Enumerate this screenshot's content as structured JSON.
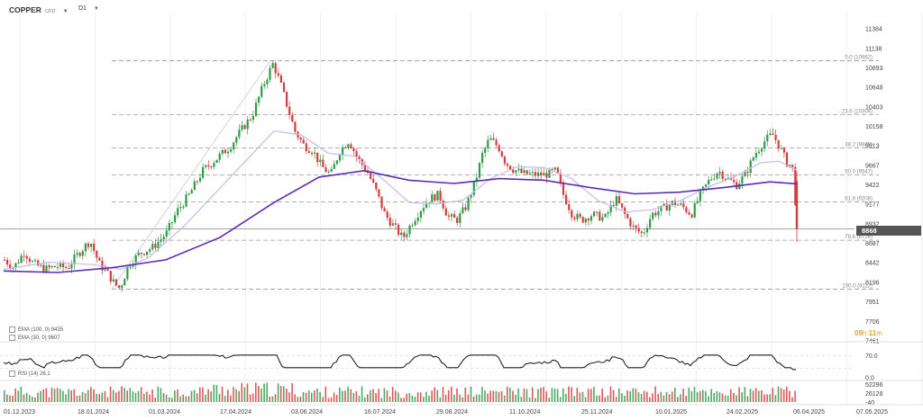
{
  "header": {
    "symbol": "COPPER",
    "symbol_suffix": "CFD",
    "timeframe": "D1"
  },
  "indicators": {
    "ema100_label": "EMA (100, 0) 9435",
    "ema30_label": "EMA (30, 0) 9607",
    "rsi_label": "RSI (14) 26.1"
  },
  "countdown": {
    "hours": "09",
    "h": "h",
    "minutes": "11",
    "m": "m"
  },
  "current_price_label": "8868",
  "colors": {
    "up": "#2e9b47",
    "down": "#d23d3d",
    "ema100": "#5b2bb5",
    "ema30": "#c9b8ef",
    "rsi": "#222222",
    "fib": "#9a9a9a"
  },
  "chart_data": {
    "type": "candlestick",
    "y_ticks": [
      "11384",
      "11138",
      "10893",
      "10648",
      "10403",
      "10158",
      "9913",
      "9667",
      "9422",
      "9177",
      "8932",
      "8687",
      "8442",
      "8196",
      "7951",
      "7706",
      "7461"
    ],
    "y_range": [
      7461,
      11384
    ],
    "x_ticks": [
      "01.12.2023",
      "18.01.2024",
      "01.03.2024",
      "17.04.2024",
      "03.06.2024",
      "16.07.2024",
      "29.08.2024",
      "11.10.2024",
      "25.11.2024",
      "10.01.2025",
      "24.02.2025",
      "06.04.2025",
      "07.05.2025"
    ],
    "current_price": 8868,
    "fibonacci": [
      {
        "label": "0.0 (10982)",
        "value": 10982
      },
      {
        "label": "23.6 (10304)",
        "value": 10304
      },
      {
        "label": "38.2 (9885)",
        "value": 9885
      },
      {
        "label": "50.0 (9547)",
        "value": 9547
      },
      {
        "label": "61.8 (9208)",
        "value": 9208
      },
      {
        "label": "78.6 (8726)",
        "value": 8726
      },
      {
        "label": "100.0 (8112)",
        "value": 8112
      }
    ],
    "close_path": [
      [
        0,
        8480
      ],
      [
        10,
        8380
      ],
      [
        22,
        8580
      ],
      [
        32,
        8430
      ],
      [
        45,
        8360
      ],
      [
        58,
        8400
      ],
      [
        70,
        8380
      ],
      [
        82,
        8560
      ],
      [
        95,
        8720
      ],
      [
        105,
        8430
      ],
      [
        115,
        8300
      ],
      [
        122,
        8180
      ],
      [
        128,
        8120
      ],
      [
        138,
        8420
      ],
      [
        150,
        8560
      ],
      [
        165,
        8640
      ],
      [
        180,
        8820
      ],
      [
        192,
        9100
      ],
      [
        205,
        9300
      ],
      [
        220,
        9600
      ],
      [
        235,
        9750
      ],
      [
        250,
        9900
      ],
      [
        262,
        10100
      ],
      [
        275,
        10300
      ],
      [
        288,
        10700
      ],
      [
        298,
        10950
      ],
      [
        306,
        10700
      ],
      [
        314,
        10400
      ],
      [
        322,
        10100
      ],
      [
        332,
        9920
      ],
      [
        342,
        9850
      ],
      [
        352,
        9650
      ],
      [
        362,
        9550
      ],
      [
        372,
        9850
      ],
      [
        382,
        9980
      ],
      [
        392,
        9750
      ],
      [
        402,
        9600
      ],
      [
        412,
        9350
      ],
      [
        422,
        9050
      ],
      [
        432,
        8900
      ],
      [
        442,
        8750
      ],
      [
        452,
        8950
      ],
      [
        462,
        9120
      ],
      [
        472,
        9250
      ],
      [
        482,
        9300
      ],
      [
        492,
        9020
      ],
      [
        502,
        8980
      ],
      [
        512,
        9150
      ],
      [
        522,
        9450
      ],
      [
        530,
        9800
      ],
      [
        538,
        10000
      ],
      [
        548,
        9900
      ],
      [
        556,
        9700
      ],
      [
        564,
        9620
      ],
      [
        576,
        9560
      ],
      [
        588,
        9550
      ],
      [
        600,
        9550
      ],
      [
        612,
        9600
      ],
      [
        620,
        9300
      ],
      [
        630,
        9050
      ],
      [
        640,
        8980
      ],
      [
        652,
        9050
      ],
      [
        666,
        9000
      ],
      [
        678,
        9250
      ],
      [
        688,
        9050
      ],
      [
        698,
        8880
      ],
      [
        708,
        8800
      ],
      [
        718,
        9050
      ],
      [
        730,
        9120
      ],
      [
        742,
        9200
      ],
      [
        752,
        9150
      ],
      [
        762,
        9050
      ],
      [
        772,
        9300
      ],
      [
        782,
        9480
      ],
      [
        792,
        9600
      ],
      [
        802,
        9500
      ],
      [
        812,
        9420
      ],
      [
        822,
        9550
      ],
      [
        832,
        9800
      ],
      [
        842,
        9960
      ],
      [
        852,
        10060
      ],
      [
        860,
        9900
      ],
      [
        868,
        9700
      ],
      [
        874,
        9650
      ],
      [
        880,
        8868
      ]
    ],
    "volume_max": 52296,
    "ema100_path": [
      [
        0,
        8340
      ],
      [
        60,
        8320
      ],
      [
        120,
        8380
      ],
      [
        180,
        8480
      ],
      [
        240,
        8760
      ],
      [
        300,
        9200
      ],
      [
        350,
        9520
      ],
      [
        400,
        9600
      ],
      [
        450,
        9480
      ],
      [
        500,
        9440
      ],
      [
        550,
        9500
      ],
      [
        600,
        9480
      ],
      [
        650,
        9390
      ],
      [
        700,
        9310
      ],
      [
        750,
        9330
      ],
      [
        800,
        9390
      ],
      [
        850,
        9460
      ],
      [
        880,
        9435
      ]
    ],
    "ema30_path": [
      [
        0,
        8360
      ],
      [
        50,
        8450
      ],
      [
        100,
        8420
      ],
      [
        130,
        8360
      ],
      [
        160,
        8500
      ],
      [
        200,
        8900
      ],
      [
        250,
        9500
      ],
      [
        300,
        10100
      ],
      [
        330,
        10050
      ],
      [
        360,
        9820
      ],
      [
        390,
        9780
      ],
      [
        420,
        9500
      ],
      [
        450,
        9200
      ],
      [
        480,
        9180
      ],
      [
        510,
        9230
      ],
      [
        540,
        9500
      ],
      [
        570,
        9650
      ],
      [
        600,
        9640
      ],
      [
        630,
        9500
      ],
      [
        660,
        9220
      ],
      [
        690,
        9080
      ],
      [
        720,
        9110
      ],
      [
        750,
        9220
      ],
      [
        780,
        9390
      ],
      [
        810,
        9520
      ],
      [
        840,
        9700
      ],
      [
        860,
        9720
      ],
      [
        880,
        9607
      ]
    ],
    "rsi_levels": [
      70,
      0
    ],
    "rsi_last": 26.1,
    "volume_ticks": [
      "52296",
      "26128",
      "-40"
    ]
  }
}
